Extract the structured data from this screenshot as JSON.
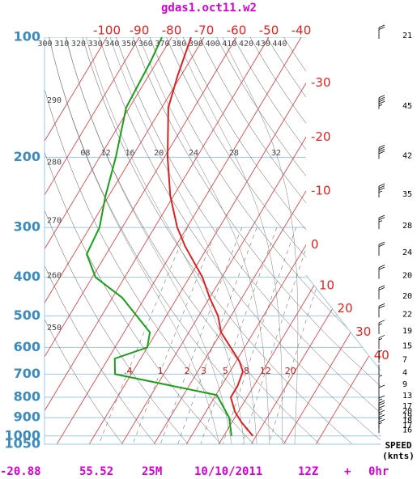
{
  "chart_data": {
    "type": "skewt",
    "title": "gdas1.oct11.w2",
    "log_y": true,
    "ylim": [
      1050,
      100
    ],
    "yticks": [
      100,
      200,
      300,
      400,
      500,
      600,
      700,
      800,
      900,
      1000,
      1050
    ],
    "temp_ticks": [
      -100,
      -90,
      -80,
      -70,
      -60,
      -50,
      -40,
      -30,
      -20,
      -10,
      0,
      10,
      20,
      30,
      40
    ],
    "theta_ticks": [
      250,
      260,
      270,
      280,
      290,
      300,
      310,
      320,
      330,
      340,
      350,
      360,
      370,
      380,
      390,
      400,
      410,
      420,
      430,
      440
    ],
    "moist_ticks": [
      {
        "value": 8,
        "label": "08"
      },
      12,
      16,
      20,
      24,
      28,
      32
    ],
    "mixing_ticks": [
      {
        "value": 0.4,
        "label": ".4"
      },
      1,
      2,
      3,
      5,
      8,
      12,
      20
    ],
    "isotherm_color": "#e83030",
    "isobar_color": "#9cc8e0",
    "series": [
      {
        "color": "#e02020",
        "pressure": [
          1000,
          925,
          870,
          800,
          750,
          690,
          650,
          550,
          500,
          450,
          400,
          335,
          300,
          250,
          200,
          150,
          125,
          100
        ],
        "values": [
          19,
          13,
          9,
          5,
          5,
          4,
          1,
          -10,
          -14,
          -20,
          -26,
          -37,
          -43,
          -51,
          -59,
          -68,
          -71,
          -74
        ]
      },
      {
        "color": "#18a018",
        "pressure": [
          1000,
          900,
          790,
          700,
          640,
          600,
          550,
          450,
          400,
          350,
          300,
          250,
          200,
          150,
          115,
          100
        ],
        "values": [
          12.4,
          8.3,
          0.3,
          -35,
          -38,
          -30,
          -32,
          -47,
          -59,
          -66,
          -67,
          -71,
          -75,
          -81,
          -82,
          -83
        ]
      }
    ],
    "wind": {
      "pressure": [
        100,
        150,
        200,
        250,
        300,
        350,
        400,
        450,
        500,
        550,
        600,
        650,
        700,
        750,
        800,
        850,
        875,
        900,
        925,
        950,
        975
      ],
      "speed": [
        21,
        45,
        42,
        35,
        28,
        24,
        20,
        20,
        22,
        19,
        15,
        7,
        4,
        9,
        13,
        17,
        20,
        19,
        18,
        17,
        16
      ],
      "label": "SPEED",
      "unit": "(knts)"
    },
    "footer": [
      "-20.88",
      "55.52",
      "25M",
      "10/10/2011",
      "12Z",
      "+",
      "0hr"
    ]
  }
}
